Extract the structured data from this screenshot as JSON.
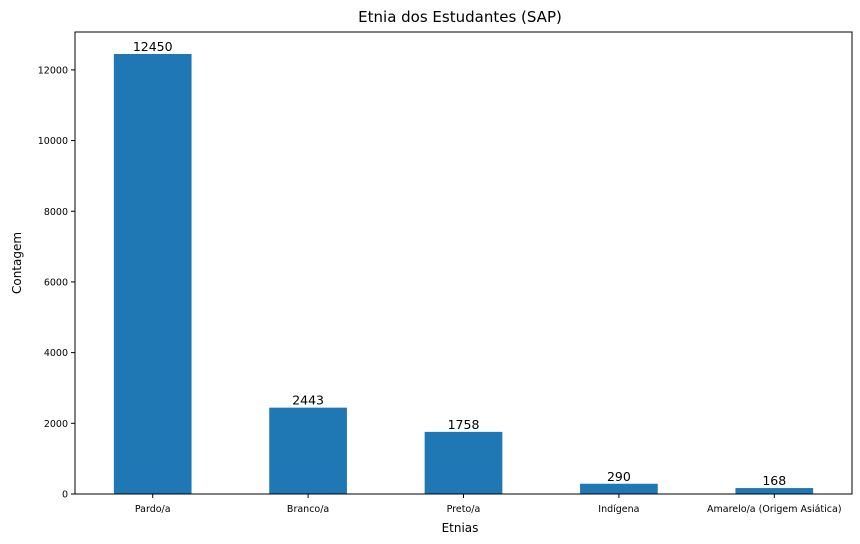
{
  "chart_data": {
    "type": "bar",
    "title": "Etnia dos Estudantes (SAP)",
    "xlabel": "Etnias",
    "ylabel": "Contagem",
    "categories": [
      "Pardo/a",
      "Branco/a",
      "Preto/a",
      "Indígena",
      "Amarelo/a (Origem Asiática)"
    ],
    "values": [
      12450,
      2443,
      1758,
      290,
      168
    ],
    "data_labels": [
      "12450",
      "2443",
      "1758",
      "290",
      "168"
    ],
    "yticks": [
      0,
      2000,
      4000,
      6000,
      8000,
      10000,
      12000
    ],
    "ytick_labels": [
      "0",
      "2000",
      "4000",
      "6000",
      "8000",
      "10000",
      "12000"
    ],
    "ylim": [
      0,
      13072
    ],
    "grid": false,
    "legend": "none",
    "bar_color": "#1f77b4"
  }
}
